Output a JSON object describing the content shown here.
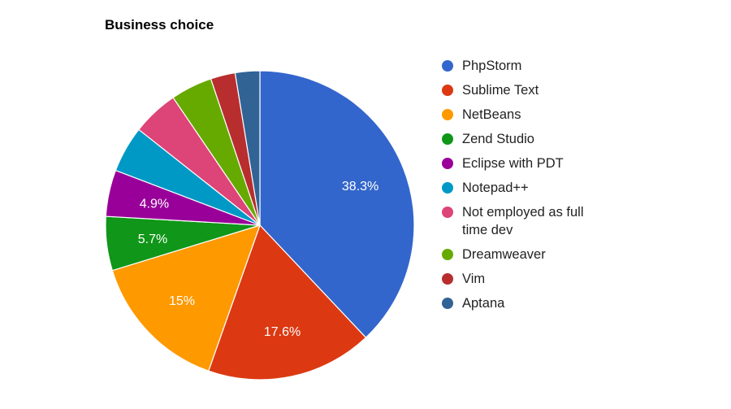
{
  "chart_data": {
    "type": "pie",
    "title": "Business choice",
    "legend_position": "right",
    "slices": [
      {
        "label": "PhpStorm",
        "value": 38.3,
        "value_label": "38.3%",
        "color": "#3366cc"
      },
      {
        "label": "Sublime Text",
        "value": 17.6,
        "value_label": "17.6%",
        "color": "#dc3912"
      },
      {
        "label": "NetBeans",
        "value": 15.0,
        "value_label": "15%",
        "color": "#ff9900"
      },
      {
        "label": "Zend Studio",
        "value": 5.7,
        "value_label": "5.7%",
        "color": "#109618"
      },
      {
        "label": "Eclipse with PDT",
        "value": 4.9,
        "value_label": "4.9%",
        "color": "#990099"
      },
      {
        "label": "Notepad++",
        "value": 4.9,
        "value_label": "",
        "color": "#0099c6"
      },
      {
        "label": "Not employed as full time dev",
        "value": 4.9,
        "value_label": "",
        "color": "#dd4477"
      },
      {
        "label": "Dreamweaver",
        "value": 4.4,
        "value_label": "",
        "color": "#66aa00"
      },
      {
        "label": "Vim",
        "value": 2.6,
        "value_label": "",
        "color": "#b82e2e"
      },
      {
        "label": "Aptana",
        "value": 2.6,
        "value_label": "",
        "color": "#316395"
      }
    ]
  }
}
